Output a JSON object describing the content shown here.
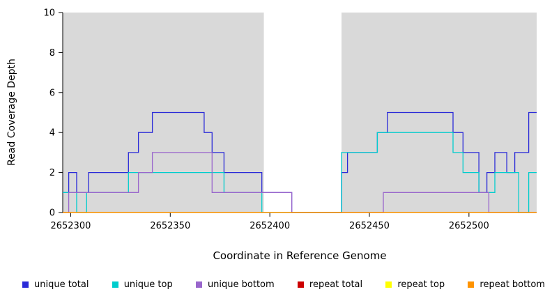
{
  "chart_data": {
    "type": "line",
    "subtype": "step",
    "title": "",
    "xlabel": "Coordinate in Reference Genome",
    "ylabel": "Read Coverage Depth",
    "xlim": [
      2652296,
      2652534
    ],
    "ylim": [
      0,
      10
    ],
    "xticks": [
      2652300,
      2652350,
      2652400,
      2652450,
      2652500
    ],
    "yticks": [
      0,
      2,
      4,
      6,
      8,
      10
    ],
    "grid": false,
    "legend_position": "bottom",
    "shade_color": "#d9d9d9",
    "shaded_regions": [
      [
        2652296,
        2652397
      ],
      [
        2652436,
        2652534
      ]
    ],
    "series": [
      {
        "name": "unique total",
        "color": "#2a2ad8",
        "steps": [
          [
            2652296,
            1
          ],
          [
            2652299,
            2
          ],
          [
            2652303,
            1
          ],
          [
            2652309,
            2
          ],
          [
            2652329,
            3
          ],
          [
            2652334,
            4
          ],
          [
            2652341,
            5
          ],
          [
            2652367,
            4
          ],
          [
            2652371,
            3
          ],
          [
            2652377,
            2
          ],
          [
            2652396,
            1
          ],
          [
            2652411,
            0
          ],
          [
            2652436,
            2
          ],
          [
            2652439,
            3
          ],
          [
            2652454,
            4
          ],
          [
            2652459,
            5
          ],
          [
            2652492,
            4
          ],
          [
            2652497,
            3
          ],
          [
            2652505,
            1
          ],
          [
            2652509,
            2
          ],
          [
            2652513,
            3
          ],
          [
            2652519,
            2
          ],
          [
            2652523,
            3
          ],
          [
            2652530,
            5
          ]
        ]
      },
      {
        "name": "unique top",
        "color": "#00cdcd",
        "steps": [
          [
            2652296,
            1
          ],
          [
            2652303,
            0
          ],
          [
            2652308,
            1
          ],
          [
            2652329,
            2
          ],
          [
            2652377,
            1
          ],
          [
            2652396,
            0
          ],
          [
            2652436,
            3
          ],
          [
            2652454,
            4
          ],
          [
            2652492,
            3
          ],
          [
            2652497,
            2
          ],
          [
            2652505,
            1
          ],
          [
            2652513,
            2
          ],
          [
            2652525,
            0
          ],
          [
            2652530,
            2
          ]
        ]
      },
      {
        "name": "unique bottom",
        "color": "#9966cc",
        "steps": [
          [
            2652296,
            0
          ],
          [
            2652299,
            1
          ],
          [
            2652334,
            2
          ],
          [
            2652341,
            3
          ],
          [
            2652371,
            1
          ],
          [
            2652411,
            0
          ],
          [
            2652457,
            1
          ],
          [
            2652510,
            0
          ]
        ]
      },
      {
        "name": "repeat total",
        "color": "#cc0000",
        "steps": [
          [
            2652296,
            0
          ]
        ]
      },
      {
        "name": "repeat top",
        "color": "#ffff00",
        "steps": [
          [
            2652296,
            0
          ]
        ]
      },
      {
        "name": "repeat bottom",
        "color": "#ff9300",
        "steps": [
          [
            2652296,
            0
          ]
        ]
      }
    ]
  }
}
